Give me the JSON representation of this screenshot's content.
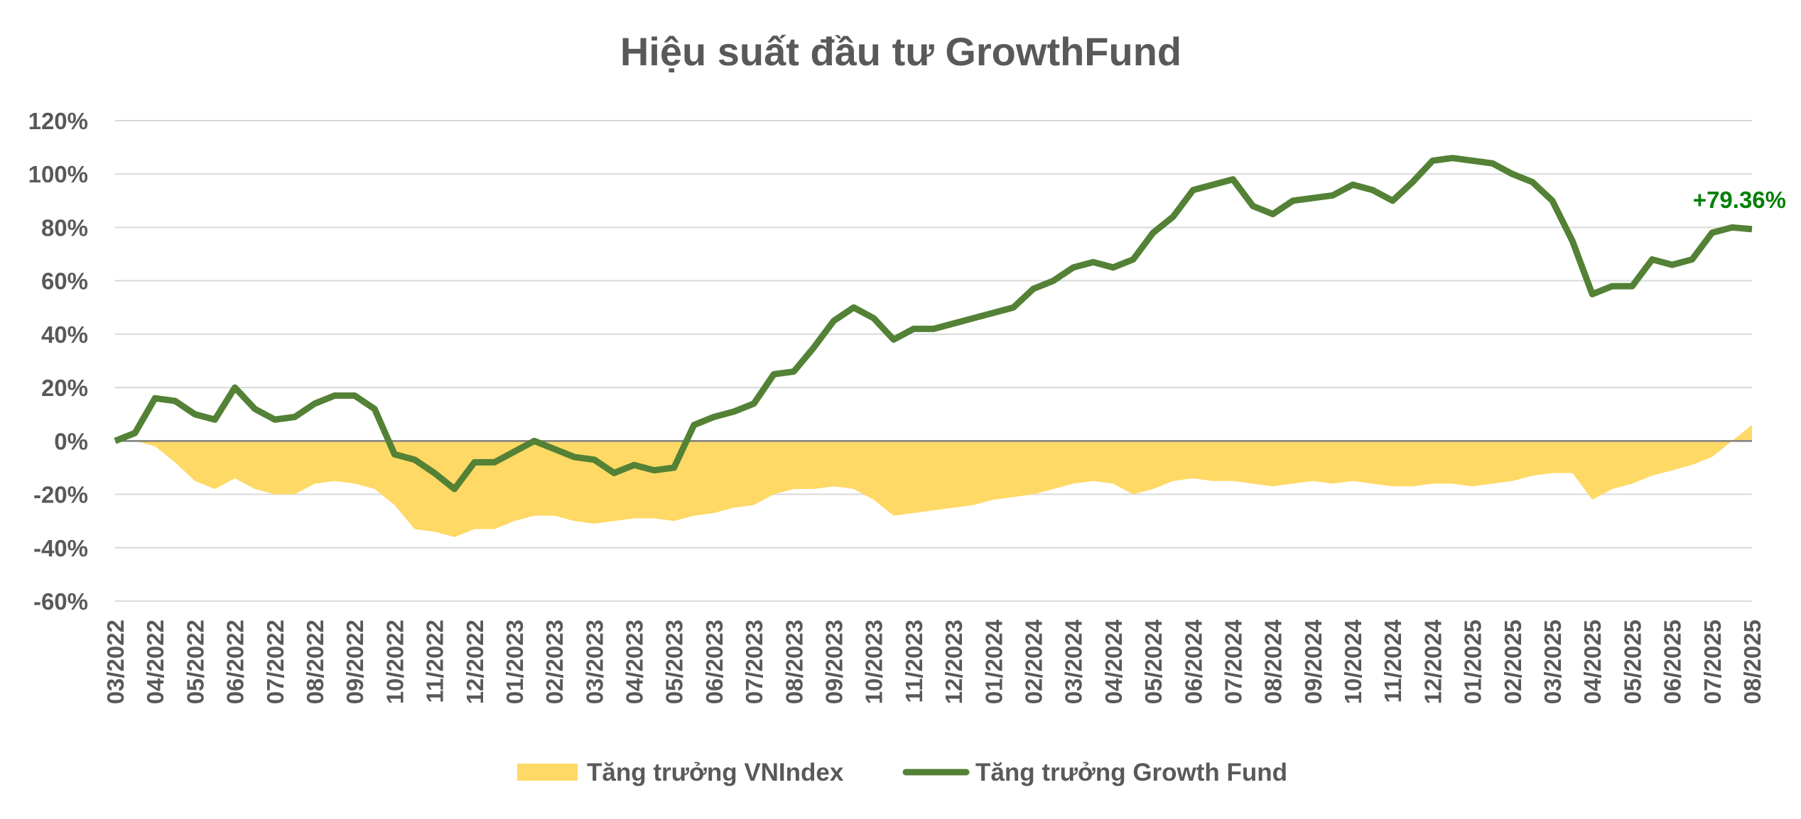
{
  "chart_data": {
    "type": "line",
    "title": "Hiệu suất đầu tư GrowthFund",
    "categories": [
      "03/2022",
      null,
      "04/2022",
      null,
      "05/2022",
      null,
      "06/2022",
      null,
      "07/2022",
      null,
      "08/2022",
      null,
      "09/2022",
      null,
      "10/2022",
      null,
      "11/2022",
      null,
      "12/2022",
      null,
      "01/2023",
      null,
      "02/2023",
      null,
      "03/2023",
      null,
      "04/2023",
      null,
      "05/2023",
      null,
      "06/2023",
      null,
      "07/2023",
      null,
      "08/2023",
      null,
      "09/2023",
      null,
      "10/2023",
      null,
      "11/2023",
      null,
      "12/2023",
      null,
      "01/2024",
      null,
      "02/2024",
      null,
      "03/2024",
      null,
      "04/2024",
      null,
      "05/2024",
      null,
      "06/2024",
      null,
      "07/2024",
      null,
      "08/2024",
      null,
      "09/2024",
      null,
      "10/2024",
      null,
      "11/2024",
      null,
      "12/2024",
      null,
      "01/2025",
      null,
      "02/2025",
      null,
      "03/2025",
      null,
      "04/2025",
      null,
      "05/2025",
      null,
      "06/2025",
      null,
      "07/2025",
      null,
      "08/2025"
    ],
    "series": [
      {
        "name": "Tăng trưởng VNIndex",
        "kind": "area",
        "color": "#ffd966",
        "values": [
          0,
          0,
          -2,
          -8,
          -15,
          -18,
          -14,
          -18,
          -20,
          -20,
          -16,
          -15,
          -16,
          -18,
          -24,
          -33,
          -34,
          -36,
          -33,
          -33,
          -30,
          -28,
          -28,
          -30,
          -31,
          -30,
          -29,
          -29,
          -30,
          -28,
          -27,
          -25,
          -24,
          -20,
          -18,
          -18,
          -17,
          -18,
          -22,
          -28,
          -27,
          -26,
          -25,
          -24,
          -22,
          -21,
          -20,
          -18,
          -16,
          -15,
          -16,
          -20,
          -18,
          -15,
          -14,
          -15,
          -15,
          -16,
          -17,
          -16,
          -15,
          -16,
          -15,
          -16,
          -17,
          -17,
          -16,
          -16,
          -17,
          -16,
          -15,
          -13,
          -12,
          -12,
          -22,
          -18,
          -16,
          -13,
          -11,
          -9,
          -6,
          0,
          6
        ]
      },
      {
        "name": "Tăng trưởng Growth Fund",
        "kind": "line",
        "color": "#538135",
        "values": [
          0,
          3,
          16,
          15,
          10,
          8,
          20,
          12,
          8,
          9,
          14,
          17,
          17,
          12,
          -5,
          -7,
          -12,
          -18,
          -8,
          -8,
          -4,
          0,
          -3,
          -6,
          -7,
          -12,
          -9,
          -11,
          -10,
          6,
          9,
          11,
          14,
          25,
          26,
          35,
          45,
          50,
          46,
          38,
          42,
          42,
          44,
          46,
          48,
          50,
          57,
          60,
          65,
          67,
          65,
          68,
          78,
          84,
          94,
          96,
          98,
          88,
          85,
          90,
          91,
          92,
          96,
          94,
          90,
          97,
          105,
          106,
          105,
          104,
          100,
          97,
          90,
          75,
          55,
          58,
          58,
          68,
          66,
          68,
          78,
          80,
          79.36
        ]
      }
    ],
    "annotation": "+79.36%",
    "annotation_color": "#008000",
    "ylim": [
      -60,
      120
    ],
    "yticks": [
      {
        "value": -60,
        "label": "-60%"
      },
      {
        "value": -40,
        "label": "-40%"
      },
      {
        "value": -20,
        "label": "-20%"
      },
      {
        "value": 0,
        "label": "0%"
      },
      {
        "value": 20,
        "label": "20%"
      },
      {
        "value": 40,
        "label": "40%"
      },
      {
        "value": 60,
        "label": "60%"
      },
      {
        "value": 80,
        "label": "80%"
      },
      {
        "value": 100,
        "label": "100%"
      },
      {
        "value": 120,
        "label": "120%"
      }
    ],
    "grid": true,
    "legend": "bottom"
  }
}
